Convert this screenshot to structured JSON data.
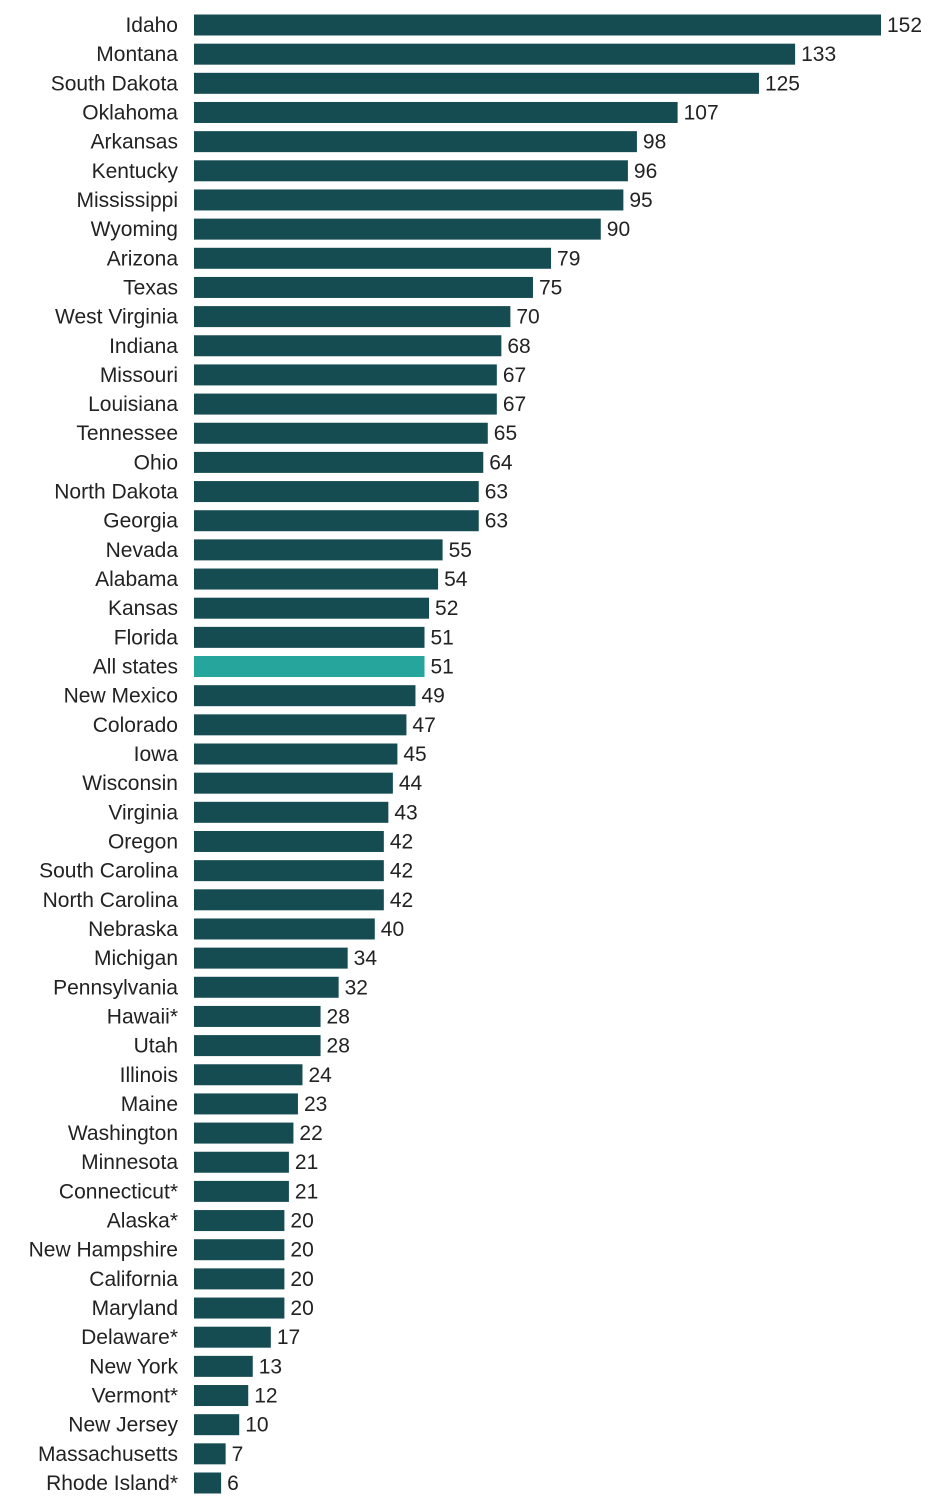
{
  "chart_data": {
    "type": "bar",
    "orientation": "horizontal",
    "title": "",
    "xlabel": "",
    "ylabel": "",
    "xlim": [
      0,
      152
    ],
    "grid": false,
    "colors": {
      "default": "#154c52",
      "highlight": "#25a59c"
    },
    "highlight": "All states",
    "categories": [
      "Idaho",
      "Montana",
      "South Dakota",
      "Oklahoma",
      "Arkansas",
      "Kentucky",
      "Mississippi",
      "Wyoming",
      "Arizona",
      "Texas",
      "West Virginia",
      "Indiana",
      "Missouri",
      "Louisiana",
      "Tennessee",
      "Ohio",
      "North Dakota",
      "Georgia",
      "Nevada",
      "Alabama",
      "Kansas",
      "Florida",
      "All states",
      "New Mexico",
      "Colorado",
      "Iowa",
      "Wisconsin",
      "Virginia",
      "Oregon",
      "South Carolina",
      "North Carolina",
      "Nebraska",
      "Michigan",
      "Pennsylvania",
      "Hawaii*",
      "Utah",
      "Illinois",
      "Maine",
      "Washington",
      "Minnesota",
      "Connecticut*",
      "Alaska*",
      "New Hampshire",
      "California",
      "Maryland",
      "Delaware*",
      "New York",
      "Vermont*",
      "New Jersey",
      "Massachusetts",
      "Rhode Island*"
    ],
    "values": [
      152,
      133,
      125,
      107,
      98,
      96,
      95,
      90,
      79,
      75,
      70,
      68,
      67,
      67,
      65,
      64,
      63,
      63,
      55,
      54,
      52,
      51,
      51,
      49,
      47,
      45,
      44,
      43,
      42,
      42,
      42,
      40,
      34,
      32,
      28,
      28,
      24,
      23,
      22,
      21,
      21,
      20,
      20,
      20,
      20,
      17,
      13,
      12,
      10,
      7,
      6
    ]
  }
}
